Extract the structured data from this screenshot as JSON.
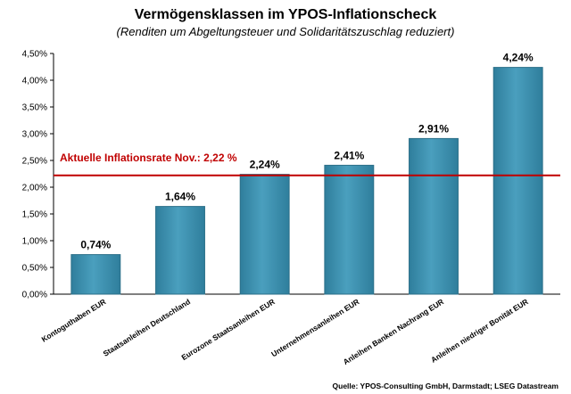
{
  "chart_data": {
    "type": "bar",
    "title": "Vermögensklassen im YPOS-Inflationscheck",
    "subtitle": "(Renditen um Abgeltungsteuer und Solidaritätszuschlag reduziert)",
    "categories": [
      "Kontoguthaben EUR",
      "Staatsanleihen Deutschland",
      "Eurozone Staatsanleihen EUR",
      "Unternehmensanleihen EUR",
      "Anleihen Banken Nachrang EUR",
      "Anleihen niedriger Bonität EUR"
    ],
    "values": [
      0.74,
      1.64,
      2.24,
      2.41,
      2.91,
      4.24
    ],
    "value_labels": [
      "0,74%",
      "1,64%",
      "2,24%",
      "2,41%",
      "2,91%",
      "4,24%"
    ],
    "ylim": [
      0,
      4.5
    ],
    "yticks": [
      0,
      0.5,
      1.0,
      1.5,
      2.0,
      2.5,
      3.0,
      3.5,
      4.0,
      4.5
    ],
    "ytick_labels": [
      "0,00%",
      "0,50%",
      "1,00%",
      "1,50%",
      "2,00%",
      "2,50%",
      "3,00%",
      "3,50%",
      "4,00%",
      "4,50%"
    ],
    "xlabel": "",
    "ylabel": "",
    "grid": false,
    "reference_line": {
      "value": 2.22,
      "label": "Aktuelle Inflationsrate Nov.: 2,22 %",
      "color": "#c00000"
    },
    "bar_color": "#3a8fae",
    "bar_edge_color": "#2b6f88",
    "source": "Quelle: YPOS-Consulting GmbH, Darmstadt; LSEG Datastream"
  }
}
